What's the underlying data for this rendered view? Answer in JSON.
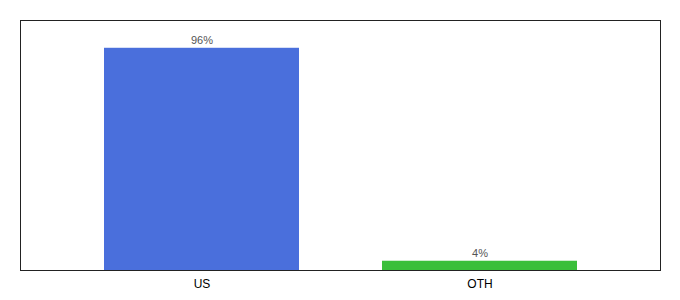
{
  "chart_data": {
    "type": "bar",
    "categories": [
      "US",
      "OTH"
    ],
    "values": [
      96,
      4
    ],
    "value_labels": [
      "96%",
      "4%"
    ],
    "colors": [
      "#4a6fdc",
      "#3abf3a"
    ],
    "ylim": [
      0,
      108
    ],
    "data_labels": true,
    "tick_labels": "x",
    "grid": false
  }
}
